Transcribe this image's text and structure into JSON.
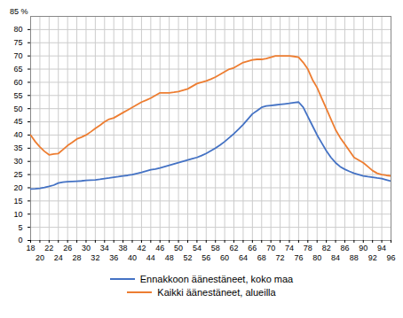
{
  "chart_data": {
    "type": "line",
    "annotations": [
      {
        "text": "85 %",
        "x": 18,
        "y": 85
      }
    ],
    "x": [
      18,
      19,
      20,
      21,
      22,
      23,
      24,
      25,
      26,
      27,
      28,
      29,
      30,
      31,
      32,
      33,
      34,
      35,
      36,
      37,
      38,
      39,
      40,
      41,
      42,
      43,
      44,
      45,
      46,
      47,
      48,
      49,
      50,
      51,
      52,
      53,
      54,
      55,
      56,
      57,
      58,
      59,
      60,
      61,
      62,
      63,
      64,
      65,
      66,
      67,
      68,
      69,
      70,
      71,
      72,
      73,
      74,
      75,
      76,
      77,
      78,
      79,
      80,
      81,
      82,
      83,
      84,
      85,
      86,
      87,
      88,
      89,
      90,
      91,
      92,
      93,
      94,
      95,
      96
    ],
    "series": [
      {
        "name": "Ennakkoon äänestäneet, koko maa",
        "color": "#4472C4",
        "values": [
          19.5,
          19.6,
          19.8,
          20.1,
          20.5,
          21.0,
          21.8,
          22.1,
          22.3,
          22.4,
          22.5,
          22.6,
          22.8,
          22.9,
          23.0,
          23.2,
          23.5,
          23.7,
          24.0,
          24.2,
          24.5,
          24.7,
          25.0,
          25.4,
          25.8,
          26.3,
          26.8,
          27.1,
          27.5,
          28.0,
          28.5,
          29.0,
          29.5,
          30.0,
          30.5,
          31.0,
          31.5,
          32.2,
          33.0,
          34.0,
          35.0,
          36.2,
          37.5,
          39.0,
          40.5,
          42.2,
          44.0,
          46.0,
          48.0,
          49.2,
          50.5,
          51.0,
          51.2,
          51.4,
          51.6,
          51.8,
          52.0,
          52.3,
          52.5,
          50.5,
          47.0,
          43.5,
          40.0,
          37.0,
          34.0,
          31.5,
          29.5,
          28.0,
          27.0,
          26.2,
          25.5,
          25.0,
          24.5,
          24.2,
          24.0,
          23.7,
          23.5,
          23.0,
          22.5
        ]
      },
      {
        "name": "Kaikki äänestäneet, alueilla",
        "color": "#ED7D31",
        "values": [
          40.0,
          37.5,
          35.5,
          33.8,
          32.5,
          32.8,
          33.0,
          34.5,
          36.0,
          37.2,
          38.5,
          39.2,
          40.0,
          41.2,
          42.5,
          43.7,
          45.0,
          46.0,
          46.5,
          47.5,
          48.5,
          49.5,
          50.5,
          51.5,
          52.5,
          53.2,
          54.0,
          55.0,
          56.0,
          56.0,
          56.0,
          56.2,
          56.5,
          57.0,
          57.5,
          58.5,
          59.5,
          60.0,
          60.5,
          61.2,
          62.0,
          63.0,
          64.0,
          65.0,
          65.5,
          66.5,
          67.5,
          68.0,
          68.5,
          68.7,
          68.7,
          69.0,
          69.5,
          70.0,
          70.0,
          70.0,
          70.0,
          69.8,
          69.5,
          67.5,
          65.0,
          61.0,
          58.0,
          54.0,
          50.0,
          46.0,
          42.0,
          39.0,
          36.5,
          34.0,
          31.5,
          30.5,
          29.5,
          28.0,
          26.5,
          25.5,
          25.0,
          24.7,
          24.5
        ]
      }
    ],
    "xlim": [
      18,
      96
    ],
    "xticks": [
      18,
      20,
      22,
      24,
      26,
      28,
      30,
      32,
      34,
      36,
      38,
      40,
      42,
      44,
      46,
      48,
      50,
      52,
      54,
      56,
      58,
      60,
      62,
      64,
      66,
      68,
      70,
      72,
      74,
      76,
      78,
      80,
      82,
      84,
      86,
      88,
      90,
      92,
      94,
      96
    ],
    "ylim": [
      0,
      85
    ],
    "yticks": [
      0,
      5,
      10,
      15,
      20,
      25,
      30,
      35,
      40,
      45,
      50,
      55,
      60,
      65,
      70,
      75,
      80
    ],
    "grid": true,
    "legend": "bottom"
  }
}
